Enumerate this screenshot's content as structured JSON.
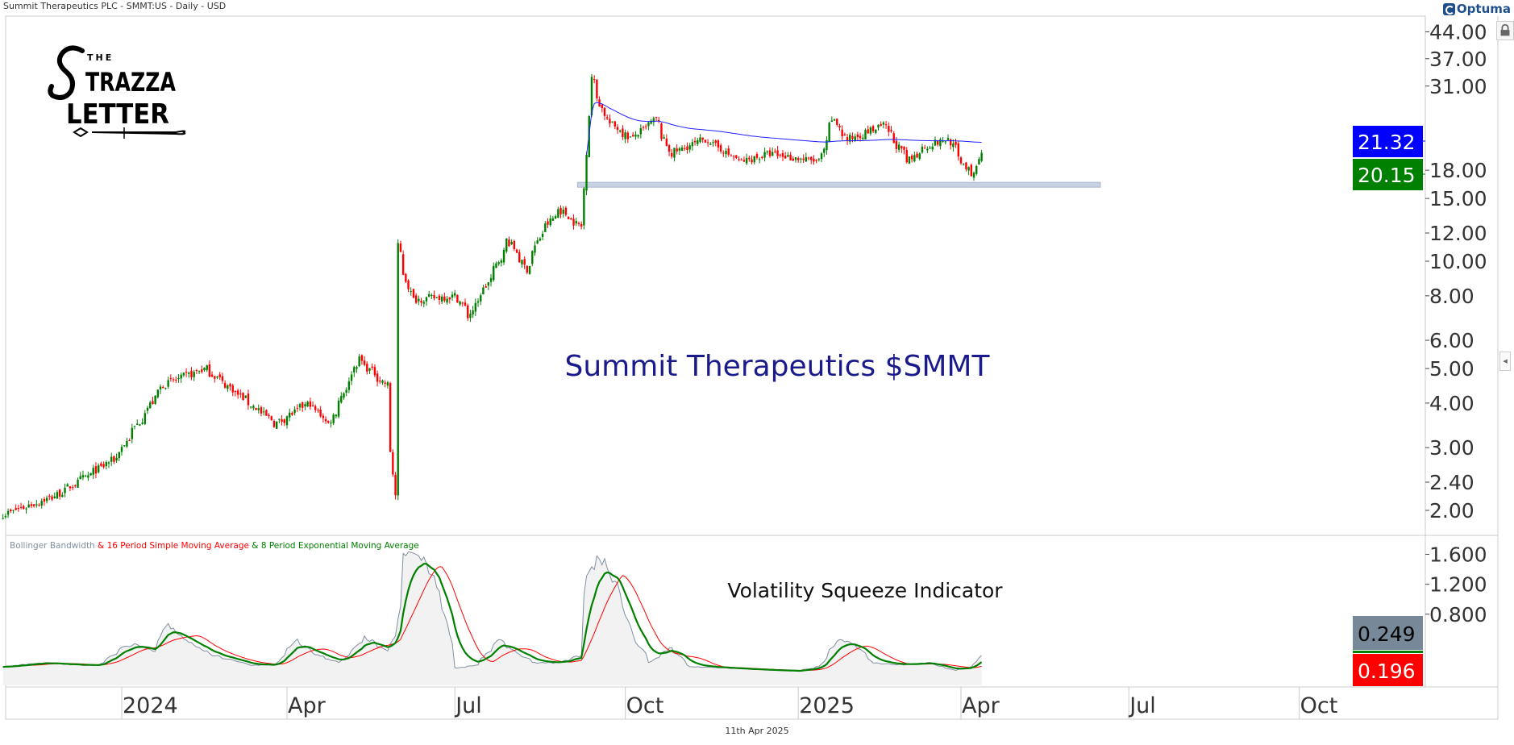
{
  "header": {
    "title": "Summit Therapeutics PLC - SMMT:US - Daily - USD",
    "brand": "Optuma"
  },
  "logo": {
    "text": "THE STRAZZA LETTER"
  },
  "annotations": {
    "headline": "Summit Therapeutics $SMMT",
    "indicator_title": "Volatility Squeeze Indicator"
  },
  "legend": {
    "bbw": "Bollinger Bandwidth",
    "sma": " & 16 Period Simple Moving Average",
    "ema": " & 8 Period Exponential Moving Average"
  },
  "footer": {
    "date": "11th Apr 2025"
  },
  "badges": {
    "ma": "21.32",
    "close": "20.15",
    "bbw": "0.249",
    "sma": "0.196"
  },
  "colors": {
    "up": "#008000",
    "down": "#ff0000",
    "ma": "#1f1fff",
    "bbw": "#8090a0",
    "sma": "#ff0000",
    "ema": "#008000",
    "headline": "#1a1a8c",
    "band": "#c9d2e3"
  },
  "chart_data": {
    "type": "candlestick",
    "title": "Summit Therapeutics PLC - SMMT:US - Daily - USD",
    "price_axis": {
      "scale": "log",
      "ticks": [
        "44.00",
        "37.00",
        "31.00",
        "18.00",
        "15.00",
        "12.00",
        "10.00",
        "8.00",
        "6.00",
        "5.00",
        "4.00",
        "3.00",
        "2.40",
        "2.00"
      ]
    },
    "indicator_axis": {
      "ticks": [
        "1.600",
        "1.200",
        "0.800"
      ]
    },
    "x_ticks": [
      {
        "label": "2024",
        "date": "2024-01-02"
      },
      {
        "label": "Apr",
        "date": "2024-04-01"
      },
      {
        "label": "Jul",
        "date": "2024-07-01"
      },
      {
        "label": "Oct",
        "date": "2024-10-01"
      },
      {
        "label": "2025",
        "date": "2025-01-02"
      },
      {
        "label": "Apr",
        "date": "2025-04-01"
      },
      {
        "label": "Jul",
        "date": "2025-07-01"
      },
      {
        "label": "Oct",
        "date": "2025-10-01"
      }
    ],
    "support_level": {
      "price": 16.3,
      "from": "2024-09-09",
      "to": "2025-06-16"
    },
    "ma_anchor": "2024-09-10",
    "price_keypoints": [
      [
        "2023-10-30",
        1.95
      ],
      [
        "2023-11-27",
        2.2
      ],
      [
        "2023-12-29",
        2.8
      ],
      [
        "2024-01-24",
        4.5
      ],
      [
        "2024-02-16",
        5.0
      ],
      [
        "2024-03-25",
        3.5
      ],
      [
        "2024-04-12",
        4.0
      ],
      [
        "2024-04-23",
        3.5
      ],
      [
        "2024-05-09",
        5.3
      ],
      [
        "2024-05-24",
        4.5
      ],
      [
        "2024-05-29",
        2.2
      ],
      [
        "2024-05-30",
        11.0
      ],
      [
        "2024-06-07",
        7.8
      ],
      [
        "2024-07-01",
        8.0
      ],
      [
        "2024-07-08",
        7.0
      ],
      [
        "2024-07-22",
        9.5
      ],
      [
        "2024-07-29",
        11.5
      ],
      [
        "2024-08-08",
        9.5
      ],
      [
        "2024-08-16",
        12.0
      ],
      [
        "2024-08-26",
        14.0
      ],
      [
        "2024-09-06",
        12.5
      ],
      [
        "2024-09-09",
        16.0
      ],
      [
        "2024-09-12",
        33.0
      ],
      [
        "2024-09-20",
        25.0
      ],
      [
        "2024-10-04",
        22.0
      ],
      [
        "2024-10-17",
        25.0
      ],
      [
        "2024-10-25",
        20.0
      ],
      [
        "2024-11-13",
        22.0
      ],
      [
        "2024-12-02",
        19.0
      ],
      [
        "2024-12-18",
        20.0
      ],
      [
        "2025-01-14",
        19.0
      ],
      [
        "2025-01-21",
        25.0
      ],
      [
        "2025-01-29",
        22.0
      ],
      [
        "2025-02-18",
        24.0
      ],
      [
        "2025-03-03",
        19.0
      ],
      [
        "2025-03-12",
        21.0
      ],
      [
        "2025-03-25",
        22.0
      ],
      [
        "2025-04-07",
        17.0
      ],
      [
        "2025-04-11",
        20.15
      ]
    ],
    "bbw_keypoints": [
      [
        "2023-10-30",
        0.1
      ],
      [
        "2023-11-20",
        0.15
      ],
      [
        "2023-12-08",
        0.12
      ],
      [
        "2023-12-20",
        0.12
      ],
      [
        "2024-01-02",
        0.35
      ],
      [
        "2024-01-10",
        0.4
      ],
      [
        "2024-01-19",
        0.3
      ],
      [
        "2024-01-26",
        0.68
      ],
      [
        "2024-02-05",
        0.45
      ],
      [
        "2024-02-20",
        0.25
      ],
      [
        "2024-03-12",
        0.12
      ],
      [
        "2024-03-25",
        0.12
      ],
      [
        "2024-04-05",
        0.45
      ],
      [
        "2024-04-17",
        0.25
      ],
      [
        "2024-04-29",
        0.15
      ],
      [
        "2024-05-13",
        0.49
      ],
      [
        "2024-05-24",
        0.3
      ],
      [
        "2024-05-29",
        0.5
      ],
      [
        "2024-06-03",
        1.55
      ],
      [
        "2024-06-07",
        1.65
      ],
      [
        "2024-06-17",
        1.4
      ],
      [
        "2024-06-24",
        0.9
      ],
      [
        "2024-07-01",
        0.08
      ],
      [
        "2024-07-12",
        0.12
      ],
      [
        "2024-07-24",
        0.45
      ],
      [
        "2024-08-02",
        0.3
      ],
      [
        "2024-08-12",
        0.15
      ],
      [
        "2024-08-26",
        0.15
      ],
      [
        "2024-09-06",
        0.25
      ],
      [
        "2024-09-10",
        1.3
      ],
      [
        "2024-09-16",
        1.59
      ],
      [
        "2024-09-26",
        1.2
      ],
      [
        "2024-10-04",
        0.55
      ],
      [
        "2024-10-14",
        0.15
      ],
      [
        "2024-10-25",
        0.35
      ],
      [
        "2024-11-05",
        0.1
      ],
      [
        "2024-11-25",
        0.08
      ],
      [
        "2024-12-20",
        0.05
      ],
      [
        "2025-01-02",
        0.04
      ],
      [
        "2025-01-14",
        0.1
      ],
      [
        "2025-01-24",
        0.46
      ],
      [
        "2025-02-03",
        0.38
      ],
      [
        "2025-02-12",
        0.15
      ],
      [
        "2025-02-28",
        0.12
      ],
      [
        "2025-03-14",
        0.15
      ],
      [
        "2025-03-28",
        0.05
      ],
      [
        "2025-04-07",
        0.1
      ],
      [
        "2025-04-11",
        0.249
      ]
    ],
    "sma_period": 16,
    "ema_period": 8
  }
}
